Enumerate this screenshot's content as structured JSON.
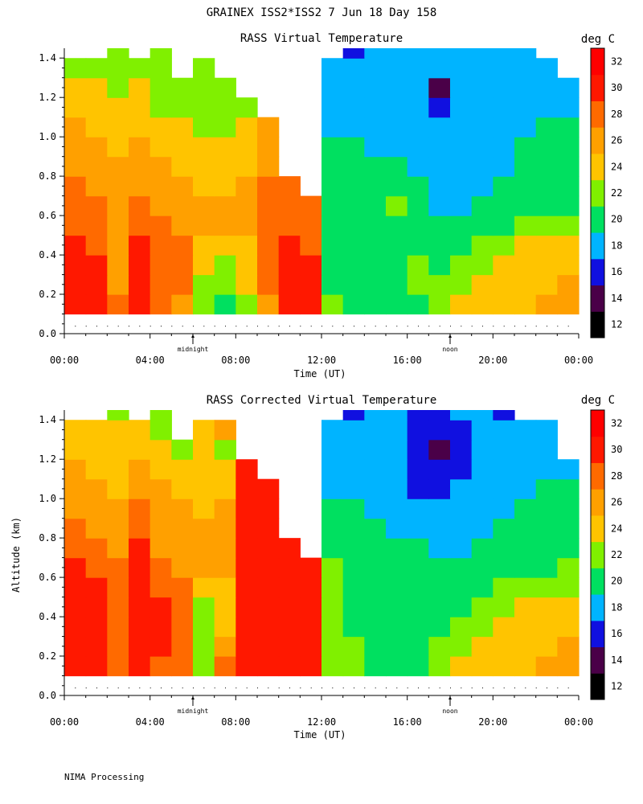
{
  "header": {
    "title": "GRAINEX ISS2*ISS2   7 Jun 18 Day 158"
  },
  "footer": {
    "note": "NIMA Processing"
  },
  "colorbar": {
    "unit": "deg C",
    "levels": [
      12,
      14,
      16,
      18,
      20,
      22,
      24,
      26,
      28,
      30,
      32
    ],
    "tick_labels": [
      "12",
      "14",
      "16",
      "18",
      "20",
      "22",
      "24",
      "26",
      "28",
      "30",
      "32"
    ],
    "colors": [
      "#000000",
      "#4a0048",
      "#1010e0",
      "#00b4ff",
      "#00e060",
      "#80f000",
      "#ffc400",
      "#ffa000",
      "#ff6a00",
      "#ff1800",
      "#ff0000"
    ]
  },
  "markers": [
    {
      "label": "midnight",
      "time_hours": 6.0
    },
    {
      "label": "noon",
      "time_hours": 18.0
    }
  ],
  "chart_data": [
    {
      "type": "heatmap",
      "title": "RASS Virtual Temperature",
      "xlabel": "Time (UT)",
      "ylabel": "",
      "xlim": [
        0,
        24
      ],
      "ylim": [
        0,
        1.45
      ],
      "x_tick_values": [
        0,
        4,
        8,
        12,
        16,
        20,
        24
      ],
      "x_tick_labels": [
        "00:00",
        "04:00",
        "08:00",
        "12:00",
        "16:00",
        "20:00",
        "00:00"
      ],
      "y_tick_values": [
        0.0,
        0.2,
        0.4,
        0.6,
        0.8,
        1.0,
        1.2,
        1.4
      ],
      "y_tick_labels": [
        "0.0",
        "0.2",
        "0.4",
        "0.6",
        "0.8",
        "1.0",
        "1.2",
        "1.4"
      ],
      "x": [
        0.5,
        1.5,
        2.5,
        3.5,
        4.5,
        5.5,
        6.5,
        7.5,
        8.5,
        9.5,
        10.5,
        11.5,
        12.5,
        13.5,
        14.5,
        15.5,
        16.5,
        17.5,
        18.5,
        19.5,
        20.5,
        21.5,
        22.5,
        23.5
      ],
      "y": [
        0.15,
        0.25,
        0.35,
        0.45,
        0.55,
        0.65,
        0.75,
        0.85,
        0.95,
        1.05,
        1.15,
        1.25,
        1.35,
        1.45
      ],
      "z": [
        [
          31,
          30,
          29,
          31,
          28,
          27,
          22,
          21,
          23,
          27,
          31,
          31,
          22,
          21,
          21,
          21,
          21,
          23,
          24,
          24,
          25,
          25,
          26,
          27
        ],
        [
          31,
          30,
          27,
          31,
          28,
          28,
          22,
          22,
          24,
          28,
          31,
          30,
          21,
          21,
          21,
          21,
          22,
          22,
          23,
          24,
          25,
          25,
          25,
          26
        ],
        [
          31,
          30,
          27,
          31,
          28,
          29,
          24,
          22,
          24,
          29,
          30,
          30,
          21,
          21,
          21,
          21,
          22,
          21,
          22,
          23,
          25,
          25,
          25,
          25
        ],
        [
          30,
          29,
          27,
          30,
          28,
          28,
          25,
          24,
          25,
          29,
          30,
          29,
          21,
          21,
          21,
          21,
          21,
          21,
          21,
          22,
          23,
          24,
          24,
          24
        ],
        [
          29,
          28,
          27,
          28,
          28,
          27,
          26,
          26,
          26,
          29,
          29,
          29,
          21,
          21,
          21,
          21,
          21,
          21,
          21,
          21,
          21,
          22,
          22,
          22
        ],
        [
          29,
          28,
          27,
          28,
          27,
          27,
          26,
          26,
          26,
          29,
          28,
          28,
          21,
          21,
          21,
          22,
          21,
          19,
          19,
          21,
          21,
          21,
          21,
          21
        ],
        [
          28,
          27,
          26,
          27,
          27,
          26,
          25,
          25,
          26,
          28,
          28,
          null,
          21,
          21,
          21,
          21,
          20,
          19,
          19,
          19,
          21,
          21,
          21,
          21
        ],
        [
          27,
          27,
          26,
          26,
          26,
          25,
          24,
          24,
          25,
          27,
          null,
          null,
          21,
          21,
          20,
          20,
          19,
          19,
          19,
          19,
          19,
          20,
          21,
          21
        ],
        [
          27,
          26,
          25,
          26,
          25,
          25,
          24,
          24,
          25,
          26,
          null,
          null,
          20,
          20,
          19,
          19,
          18,
          18,
          18,
          18,
          19,
          20,
          21,
          21
        ],
        [
          26,
          25,
          24,
          25,
          24,
          24,
          23,
          22,
          24,
          26,
          null,
          null,
          19,
          19,
          19,
          19,
          18,
          18,
          18,
          18,
          19,
          19,
          20,
          20
        ],
        [
          25,
          24,
          24,
          24,
          23,
          23,
          23,
          22,
          23,
          null,
          null,
          null,
          19,
          19,
          19,
          19,
          18,
          17,
          18,
          18,
          19,
          19,
          19,
          19
        ],
        [
          24,
          24,
          23,
          24,
          23,
          22,
          23,
          22,
          null,
          null,
          null,
          null,
          19,
          19,
          19,
          19,
          18,
          14,
          18,
          18,
          19,
          19,
          19,
          19
        ],
        [
          23,
          22,
          22,
          22,
          22,
          null,
          22,
          null,
          null,
          null,
          null,
          null,
          19,
          19,
          19,
          19,
          18,
          18,
          18,
          19,
          19,
          19,
          19,
          null
        ],
        [
          null,
          null,
          22,
          null,
          22,
          null,
          null,
          null,
          null,
          null,
          null,
          null,
          null,
          17,
          19,
          19,
          18,
          18,
          18,
          18,
          19,
          19,
          null,
          null
        ]
      ]
    },
    {
      "type": "heatmap",
      "title": "RASS Corrected Virtual Temperature",
      "xlabel": "Time (UT)",
      "ylabel": "Altitude (km)",
      "xlim": [
        0,
        24
      ],
      "ylim": [
        0,
        1.45
      ],
      "x_tick_values": [
        0,
        4,
        8,
        12,
        16,
        20,
        24
      ],
      "x_tick_labels": [
        "00:00",
        "04:00",
        "08:00",
        "12:00",
        "16:00",
        "20:00",
        "00:00"
      ],
      "y_tick_values": [
        0.0,
        0.2,
        0.4,
        0.6,
        0.8,
        1.0,
        1.2,
        1.4
      ],
      "y_tick_labels": [
        "0.0",
        "0.2",
        "0.4",
        "0.6",
        "0.8",
        "1.0",
        "1.2",
        "1.4"
      ],
      "x": [
        0.5,
        1.5,
        2.5,
        3.5,
        4.5,
        5.5,
        6.5,
        7.5,
        8.5,
        9.5,
        10.5,
        11.5,
        12.5,
        13.5,
        14.5,
        15.5,
        16.5,
        17.5,
        18.5,
        19.5,
        20.5,
        21.5,
        22.5,
        23.5
      ],
      "y": [
        0.15,
        0.25,
        0.35,
        0.45,
        0.55,
        0.65,
        0.75,
        0.85,
        0.95,
        1.05,
        1.15,
        1.25,
        1.35,
        1.45
      ],
      "z": [
        [
          31,
          31,
          29,
          31,
          29,
          28,
          22,
          28,
          31,
          31,
          31,
          31,
          22,
          22,
          21,
          21,
          21,
          23,
          24,
          24,
          24,
          25,
          26,
          26
        ],
        [
          31,
          30,
          28,
          31,
          30,
          28,
          23,
          26,
          31,
          31,
          31,
          31,
          22,
          22,
          21,
          21,
          21,
          22,
          23,
          24,
          24,
          25,
          25,
          26
        ],
        [
          31,
          30,
          28,
          31,
          30,
          28,
          22,
          25,
          31,
          31,
          31,
          31,
          22,
          21,
          21,
          21,
          21,
          21,
          22,
          23,
          24,
          24,
          25,
          25
        ],
        [
          31,
          30,
          29,
          31,
          30,
          28,
          23,
          24,
          31,
          31,
          31,
          31,
          22,
          21,
          21,
          21,
          21,
          21,
          21,
          22,
          23,
          24,
          24,
          24
        ],
        [
          30,
          30,
          28,
          31,
          29,
          28,
          25,
          25,
          31,
          31,
          31,
          31,
          22,
          21,
          21,
          21,
          21,
          21,
          21,
          21,
          22,
          23,
          23,
          23
        ],
        [
          30,
          29,
          28,
          31,
          28,
          27,
          26,
          26,
          31,
          31,
          31,
          31,
          22,
          21,
          21,
          21,
          21,
          20,
          21,
          21,
          21,
          21,
          21,
          22
        ],
        [
          29,
          28,
          27,
          30,
          27,
          27,
          26,
          27,
          31,
          31,
          31,
          null,
          21,
          21,
          21,
          20,
          20,
          19,
          19,
          20,
          21,
          21,
          21,
          21
        ],
        [
          28,
          27,
          27,
          29,
          27,
          27,
          26,
          27,
          31,
          31,
          null,
          null,
          21,
          21,
          20,
          19,
          19,
          19,
          19,
          19,
          20,
          21,
          21,
          21
        ],
        [
          27,
          27,
          26,
          28,
          26,
          26,
          25,
          26,
          31,
          31,
          null,
          null,
          20,
          20,
          19,
          19,
          19,
          18,
          18,
          19,
          19,
          20,
          21,
          21
        ],
        [
          26,
          26,
          25,
          27,
          26,
          25,
          24,
          25,
          31,
          31,
          null,
          null,
          19,
          19,
          19,
          19,
          17,
          17,
          18,
          19,
          19,
          19,
          20,
          20
        ],
        [
          26,
          25,
          25,
          26,
          25,
          24,
          25,
          24,
          31,
          null,
          null,
          null,
          19,
          19,
          19,
          19,
          17,
          17,
          17,
          18,
          19,
          19,
          19,
          19
        ],
        [
          25,
          24,
          24,
          25,
          24,
          23,
          24,
          23,
          null,
          null,
          null,
          null,
          19,
          19,
          19,
          19,
          17,
          14,
          17,
          18,
          19,
          19,
          19,
          null
        ],
        [
          24,
          24,
          24,
          24,
          23,
          null,
          24,
          27,
          null,
          null,
          null,
          null,
          19,
          19,
          19,
          19,
          17,
          17,
          17,
          18,
          18,
          19,
          19,
          null
        ],
        [
          null,
          null,
          23,
          null,
          22,
          null,
          null,
          null,
          null,
          null,
          null,
          null,
          null,
          17,
          19,
          19,
          17,
          17,
          18,
          18,
          17,
          null,
          null,
          null
        ]
      ]
    }
  ]
}
